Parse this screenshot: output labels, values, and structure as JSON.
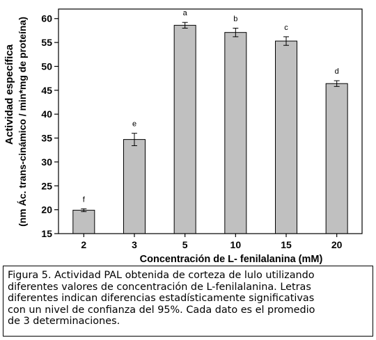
{
  "chart_data": {
    "type": "bar",
    "categories": [
      "2",
      "3",
      "5",
      "10",
      "15",
      "20"
    ],
    "values": [
      19.9,
      34.7,
      58.6,
      57.1,
      55.3,
      46.4
    ],
    "errors": [
      0.3,
      1.3,
      0.6,
      0.9,
      0.9,
      0.6
    ],
    "significance_letters": [
      "f",
      "e",
      "a",
      "b",
      "c",
      "d"
    ],
    "xlabel": "Concentración de L- fenilalanina (mM)",
    "ylabel_line1": "Actividad específica",
    "ylabel_line2": "(nm Ác. trans-cinámico / min*mg de proteína)",
    "ylim": [
      15,
      62
    ],
    "yticks": [
      15,
      20,
      25,
      30,
      35,
      40,
      45,
      50,
      55,
      60
    ],
    "grid": false,
    "bar_color": "#c0c0c0"
  },
  "caption": {
    "lines": [
      "Figura 5.  Actividad PAL obtenida de corteza de lulo utilizando",
      "diferentes valores de concentración de L-fenilalanina. Letras",
      "diferentes indican diferencias estadísticamente significativas",
      "con un nivel de confianza del 95%. Cada dato es el promedio",
      "de 3 determinaciones."
    ]
  }
}
